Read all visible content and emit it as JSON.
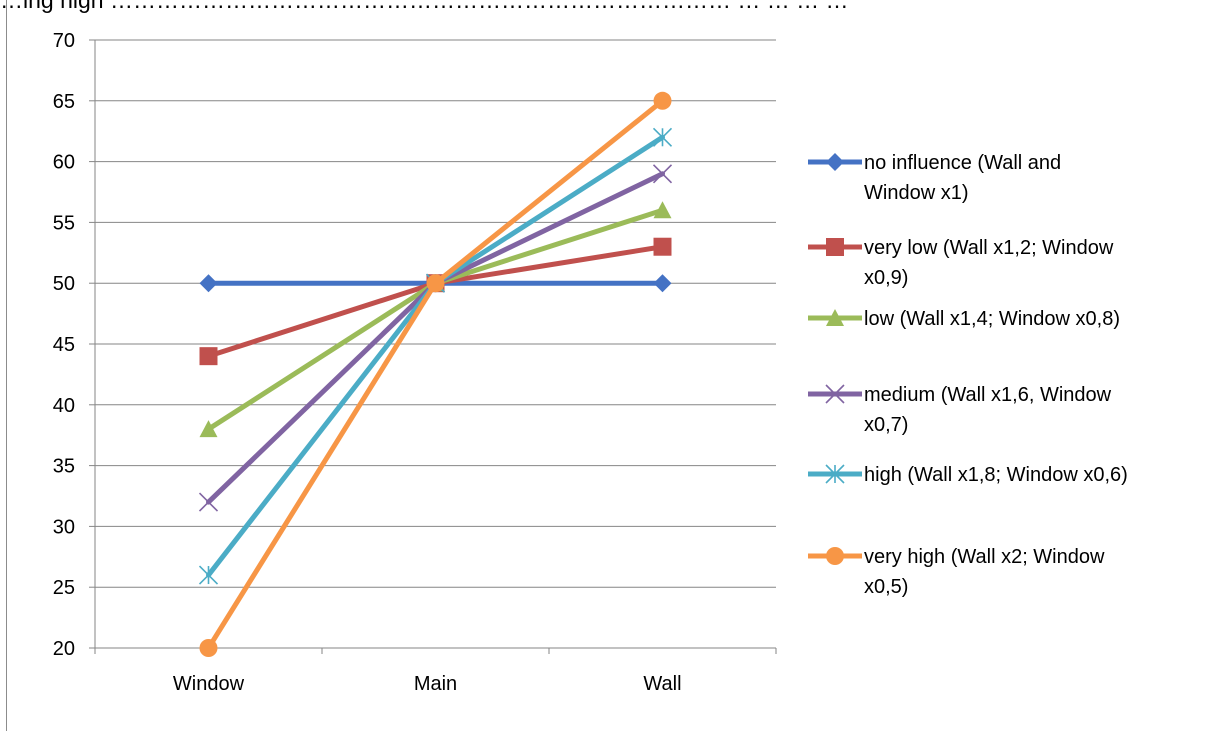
{
  "caption": "…ing high ……………………………………………………………………… … … … …",
  "chart_data": {
    "type": "line",
    "title": "",
    "xlabel": "",
    "ylabel": "",
    "categories": [
      "Window",
      "Main",
      "Wall"
    ],
    "ylim": [
      20,
      70
    ],
    "yticks": [
      20,
      25,
      30,
      35,
      40,
      45,
      50,
      55,
      60,
      65,
      70
    ],
    "grid": true,
    "legend_position": "right",
    "series": [
      {
        "name": "no influence (Wall and Window x1)",
        "legend_lines": [
          "no influence (Wall and",
          "Window x1)"
        ],
        "values": [
          50,
          50,
          50
        ],
        "color": "#4472C4",
        "marker": "diamond"
      },
      {
        "name": "very low (Wall x1,2; Window x0,9)",
        "legend_lines": [
          "very low (Wall x1,2; Window",
          "x0,9)"
        ],
        "values": [
          44,
          50,
          53
        ],
        "color": "#C0504D",
        "marker": "square"
      },
      {
        "name": "low (Wall x1,4; Window x0,8)",
        "legend_lines": [
          "low (Wall x1,4; Window x0,8)"
        ],
        "values": [
          38,
          50,
          56
        ],
        "color": "#9BBB59",
        "marker": "triangle"
      },
      {
        "name": "medium (Wall x1,6, Window x0,7)",
        "legend_lines": [
          "medium (Wall x1,6, Window",
          "x0,7)"
        ],
        "values": [
          32,
          50,
          59
        ],
        "color": "#8064A2",
        "marker": "x"
      },
      {
        "name": "high (Wall x1,8; Window x0,6)",
        "legend_lines": [
          "high (Wall x1,8; Window x0,6)"
        ],
        "values": [
          26,
          50,
          62
        ],
        "color": "#4BACC6",
        "marker": "asterisk"
      },
      {
        "name": "very high (Wall x2; Window x0,5)",
        "legend_lines": [
          "very high (Wall x2; Window",
          "x0,5)"
        ],
        "values": [
          20,
          50,
          65
        ],
        "color": "#F79646",
        "marker": "circle"
      }
    ]
  }
}
